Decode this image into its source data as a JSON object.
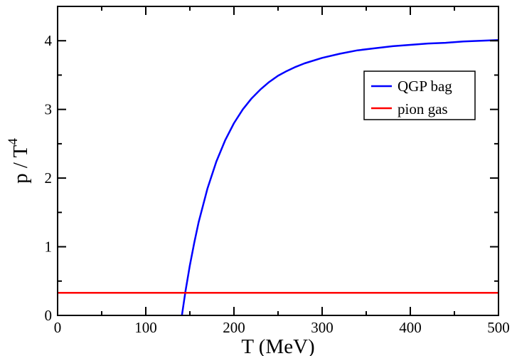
{
  "chart_data": {
    "type": "line",
    "xlabel": "T (MeV)",
    "ylabel": "p / T",
    "ylabel_superscript": "4",
    "xlim": [
      0,
      500
    ],
    "ylim": [
      0,
      4.5
    ],
    "x_ticks": [
      "0",
      "100",
      "200",
      "300",
      "400",
      "500"
    ],
    "y_ticks": [
      "0",
      "1",
      "2",
      "3",
      "4"
    ],
    "grid": false,
    "legend_position": "top-right",
    "series": [
      {
        "name": "QGP bag",
        "color": "#0000ff",
        "x": [
          141,
          145,
          150,
          155,
          160,
          170,
          180,
          190,
          200,
          210,
          220,
          230,
          240,
          250,
          260,
          270,
          280,
          300,
          320,
          340,
          360,
          380,
          400,
          420,
          440,
          460,
          480,
          500
        ],
        "y": [
          0.0,
          0.35,
          0.73,
          1.06,
          1.36,
          1.85,
          2.24,
          2.55,
          2.8,
          3.0,
          3.16,
          3.29,
          3.4,
          3.49,
          3.56,
          3.62,
          3.67,
          3.75,
          3.81,
          3.86,
          3.89,
          3.92,
          3.94,
          3.96,
          3.97,
          3.99,
          4.0,
          4.01
        ]
      },
      {
        "name": "pion gas",
        "color": "#ff0000",
        "x": [
          0,
          500
        ],
        "y": [
          0.33,
          0.33
        ]
      }
    ]
  }
}
